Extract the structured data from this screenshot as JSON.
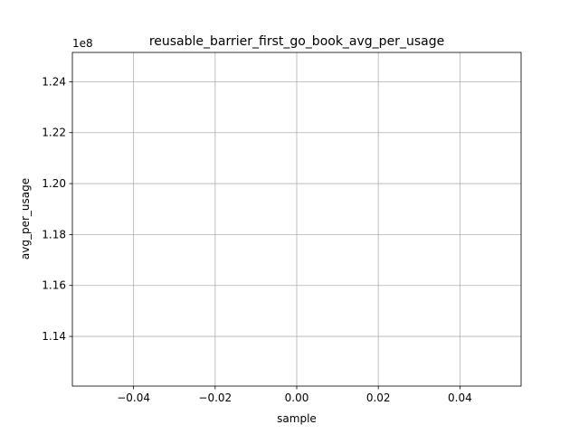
{
  "chart_data": {
    "type": "line",
    "title": "reusable_barrier_first_go_book_avg_per_usage",
    "xlabel": "sample",
    "ylabel": "avg_per_usage",
    "y_offset_label": "1e8",
    "grid": true,
    "xlim": [
      -0.055,
      0.055
    ],
    "ylim": [
      1.1205,
      1.2515
    ],
    "x_ticks": [
      -0.04,
      -0.02,
      0.0,
      0.02,
      0.04
    ],
    "x_tick_labels": [
      "−0.04",
      "−0.02",
      "0.00",
      "0.02",
      "0.04"
    ],
    "y_ticks": [
      1.14,
      1.16,
      1.18,
      1.2,
      1.22,
      1.24
    ],
    "y_tick_labels": [
      "1.14",
      "1.16",
      "1.18",
      "1.20",
      "1.22",
      "1.24"
    ],
    "series": []
  }
}
